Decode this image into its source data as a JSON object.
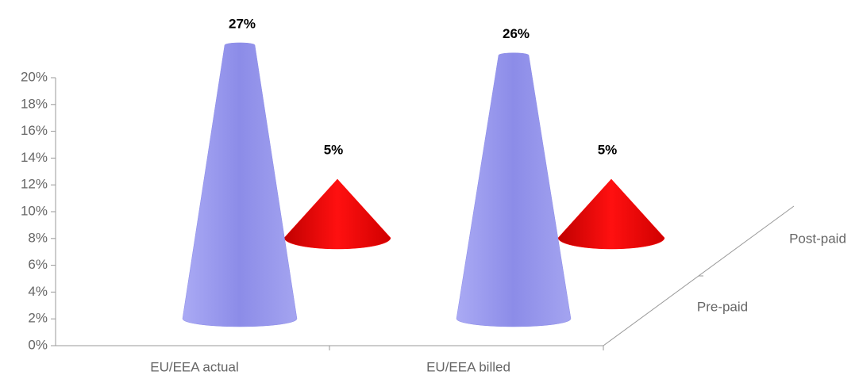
{
  "chart_data": {
    "type": "cone3d",
    "categories": [
      "EU/EEA actual",
      "EU/EEA billed"
    ],
    "series": [
      {
        "name": "Pre-paid",
        "color": "#8c8ce8",
        "values": [
          27,
          26
        ],
        "value_labels": [
          "27%",
          "26%"
        ]
      },
      {
        "name": "Post-paid",
        "color": "#ff0000",
        "values": [
          5,
          5
        ],
        "value_labels": [
          "5%",
          "5%"
        ]
      }
    ],
    "ylim": [
      0,
      20
    ],
    "yticks": [
      {
        "value": 0,
        "label": "0%"
      },
      {
        "value": 2,
        "label": "2%"
      },
      {
        "value": 4,
        "label": "4%"
      },
      {
        "value": 6,
        "label": "6%"
      },
      {
        "value": 8,
        "label": "8%"
      },
      {
        "value": 10,
        "label": "10%"
      },
      {
        "value": 12,
        "label": "12%"
      },
      {
        "value": 14,
        "label": "14%"
      },
      {
        "value": 16,
        "label": "16%"
      },
      {
        "value": 18,
        "label": "18%"
      },
      {
        "value": 20,
        "label": "20%"
      }
    ]
  }
}
